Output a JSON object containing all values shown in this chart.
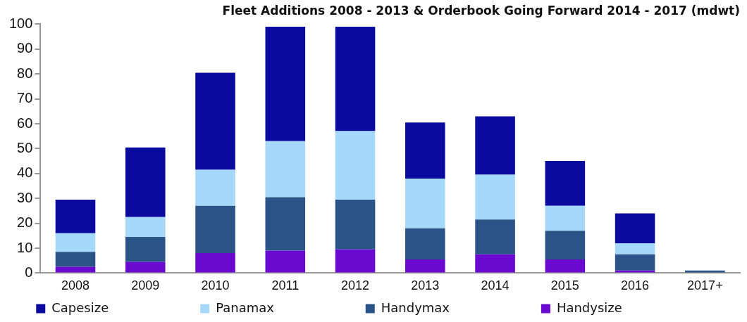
{
  "chart_data": {
    "type": "bar",
    "title": "Fleet Additions 2008 - 2013 & Orderbook Going Forward 2014 - 2017 (mdwt)",
    "categories": [
      "2008",
      "2009",
      "2010",
      "2011",
      "2012",
      "2013",
      "2014",
      "2015",
      "2016",
      "2017+"
    ],
    "stacked": true,
    "series": [
      {
        "name": "Handysize",
        "color": "#6a0ad0",
        "values": [
          2.5,
          4.5,
          8,
          9,
          9.5,
          5.5,
          7.5,
          5.5,
          1,
          0
        ]
      },
      {
        "name": "Handymax",
        "color": "#2a5487",
        "values": [
          6,
          10,
          19,
          21.5,
          20,
          12.5,
          14,
          11.5,
          6.5,
          1
        ]
      },
      {
        "name": "Panamax",
        "color": "#a6d8fc",
        "values": [
          7.5,
          8,
          14.5,
          22.5,
          27.5,
          20,
          18,
          10,
          4.5,
          0
        ]
      },
      {
        "name": "Capesize",
        "color": "#0a0a9e",
        "values": [
          13.5,
          28,
          39,
          46,
          42,
          22.5,
          23.5,
          18,
          12,
          0
        ]
      }
    ],
    "ylim": [
      0,
      100
    ],
    "yticks": [
      0,
      10,
      20,
      30,
      40,
      50,
      60,
      70,
      80,
      90,
      100
    ],
    "grid": false,
    "legend": "bottom"
  }
}
